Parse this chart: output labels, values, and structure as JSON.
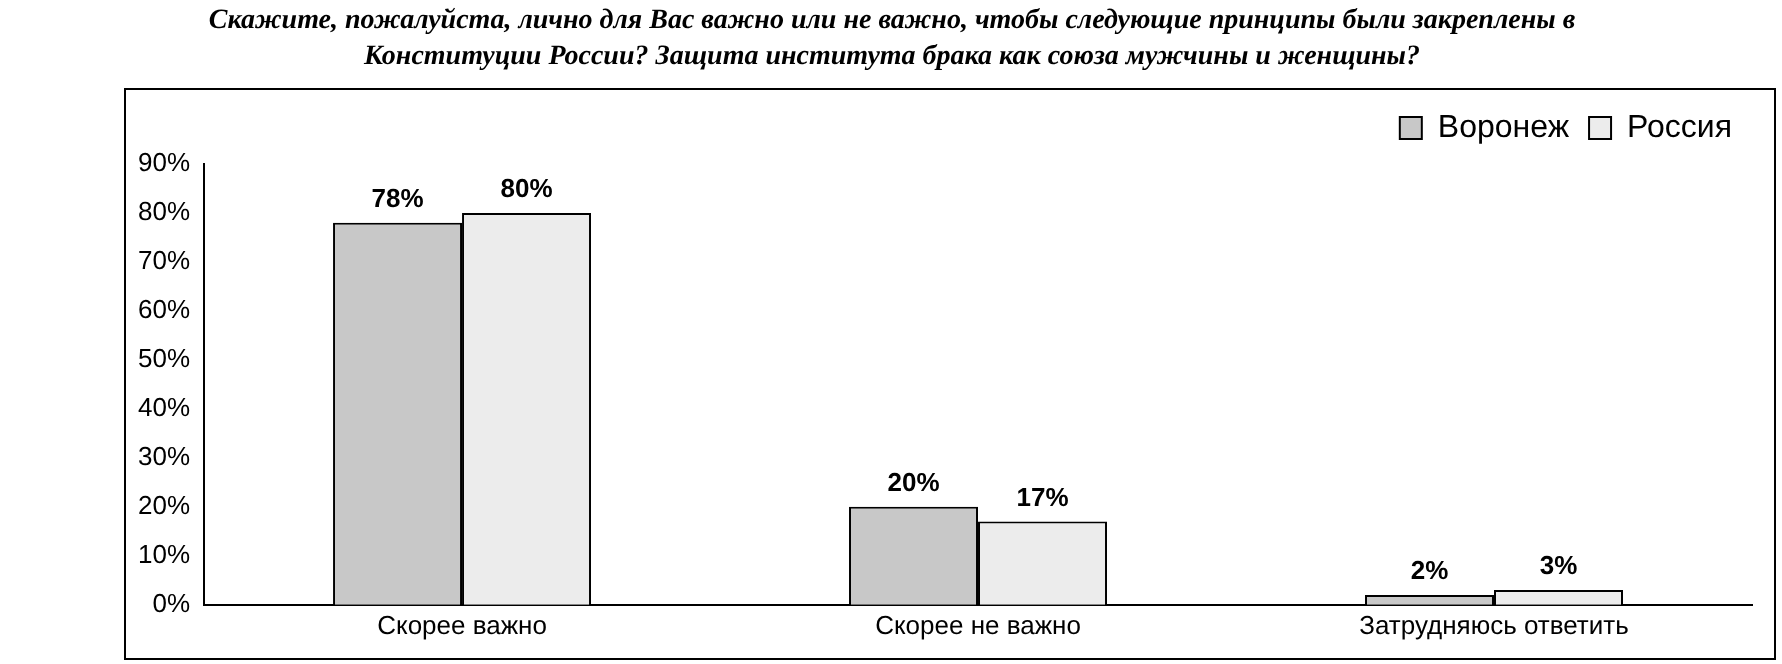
{
  "chart_data": {
    "type": "bar",
    "title": "Скажите, пожалуйста, лично для Вас важно или не важно, чтобы следующие принципы были закреплены в Конституции России? Защита института брака как союза мужчины и женщины?",
    "categories": [
      "Скорее важно",
      "Скорее не важно",
      "Затрудняюсь ответить"
    ],
    "series": [
      {
        "name": "Воронеж",
        "color": "#c8c8c8",
        "values": [
          78,
          20,
          2
        ]
      },
      {
        "name": "Россия",
        "color": "#ececec",
        "values": [
          80,
          17,
          3
        ]
      }
    ],
    "ylim": [
      0,
      90
    ],
    "yticks": [
      {
        "value": 0,
        "label": "0%"
      },
      {
        "value": 10,
        "label": "10%"
      },
      {
        "value": 20,
        "label": "20%"
      },
      {
        "value": 30,
        "label": "30%"
      },
      {
        "value": 40,
        "label": "40%"
      },
      {
        "value": 50,
        "label": "50%"
      },
      {
        "value": 60,
        "label": "60%"
      },
      {
        "value": 70,
        "label": "70%"
      },
      {
        "value": 80,
        "label": "80%"
      },
      {
        "value": 90,
        "label": "90%"
      }
    ],
    "value_labels": [
      [
        "78%",
        "20%",
        "2%"
      ],
      [
        "80%",
        "17%",
        "3%"
      ]
    ],
    "grid": false,
    "legend": "top right"
  }
}
